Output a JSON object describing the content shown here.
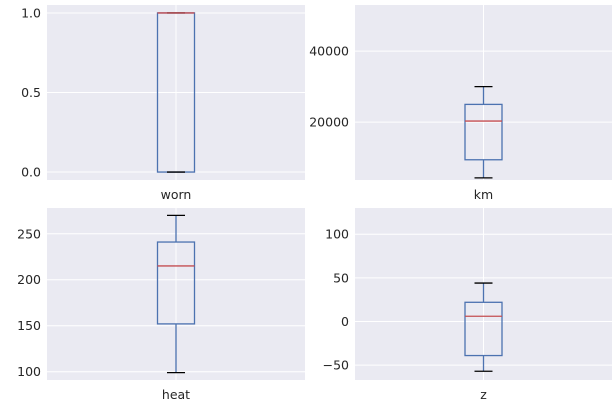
{
  "chart_data": [
    {
      "type": "box",
      "category": "worn",
      "ylim": [
        -0.05,
        1.05
      ],
      "yticks": [
        0.0,
        0.5,
        1.0
      ],
      "ytick_labels": [
        "0.0",
        "0.5",
        "1.0"
      ],
      "grid": true,
      "box": {
        "whisker_low": 0,
        "q1": 0,
        "median": 1,
        "q3": 1,
        "whisker_high": 1
      }
    },
    {
      "type": "box",
      "category": "km",
      "ylim": [
        3700,
        53000
      ],
      "yticks": [
        20000,
        40000
      ],
      "ytick_labels": [
        "20000",
        "40000"
      ],
      "grid": true,
      "box": {
        "whisker_low": 4300,
        "q1": 9400,
        "median": 20300,
        "q3": 25000,
        "whisker_high": 30000
      }
    },
    {
      "type": "box",
      "category": "heat",
      "ylim": [
        91,
        278
      ],
      "yticks": [
        100,
        150,
        200,
        250
      ],
      "ytick_labels": [
        "100",
        "150",
        "200",
        "250"
      ],
      "grid": true,
      "box": {
        "whisker_low": 99,
        "q1": 152,
        "median": 215,
        "q3": 241,
        "whisker_high": 270
      }
    },
    {
      "type": "box",
      "category": "z",
      "ylim": [
        -67,
        130
      ],
      "yticks": [
        -50,
        0,
        50,
        100
      ],
      "ytick_labels": [
        "−50",
        "0",
        "50",
        "100"
      ],
      "grid": true,
      "box": {
        "whisker_low": -57,
        "q1": -39,
        "median": 6,
        "q3": 22,
        "whisker_high": 44
      }
    }
  ],
  "colors": {
    "panel_background": "#eaeaf2",
    "grid": "#ffffff",
    "box": "#4c72b0",
    "median": "#c44e52",
    "cap": "#000000"
  }
}
